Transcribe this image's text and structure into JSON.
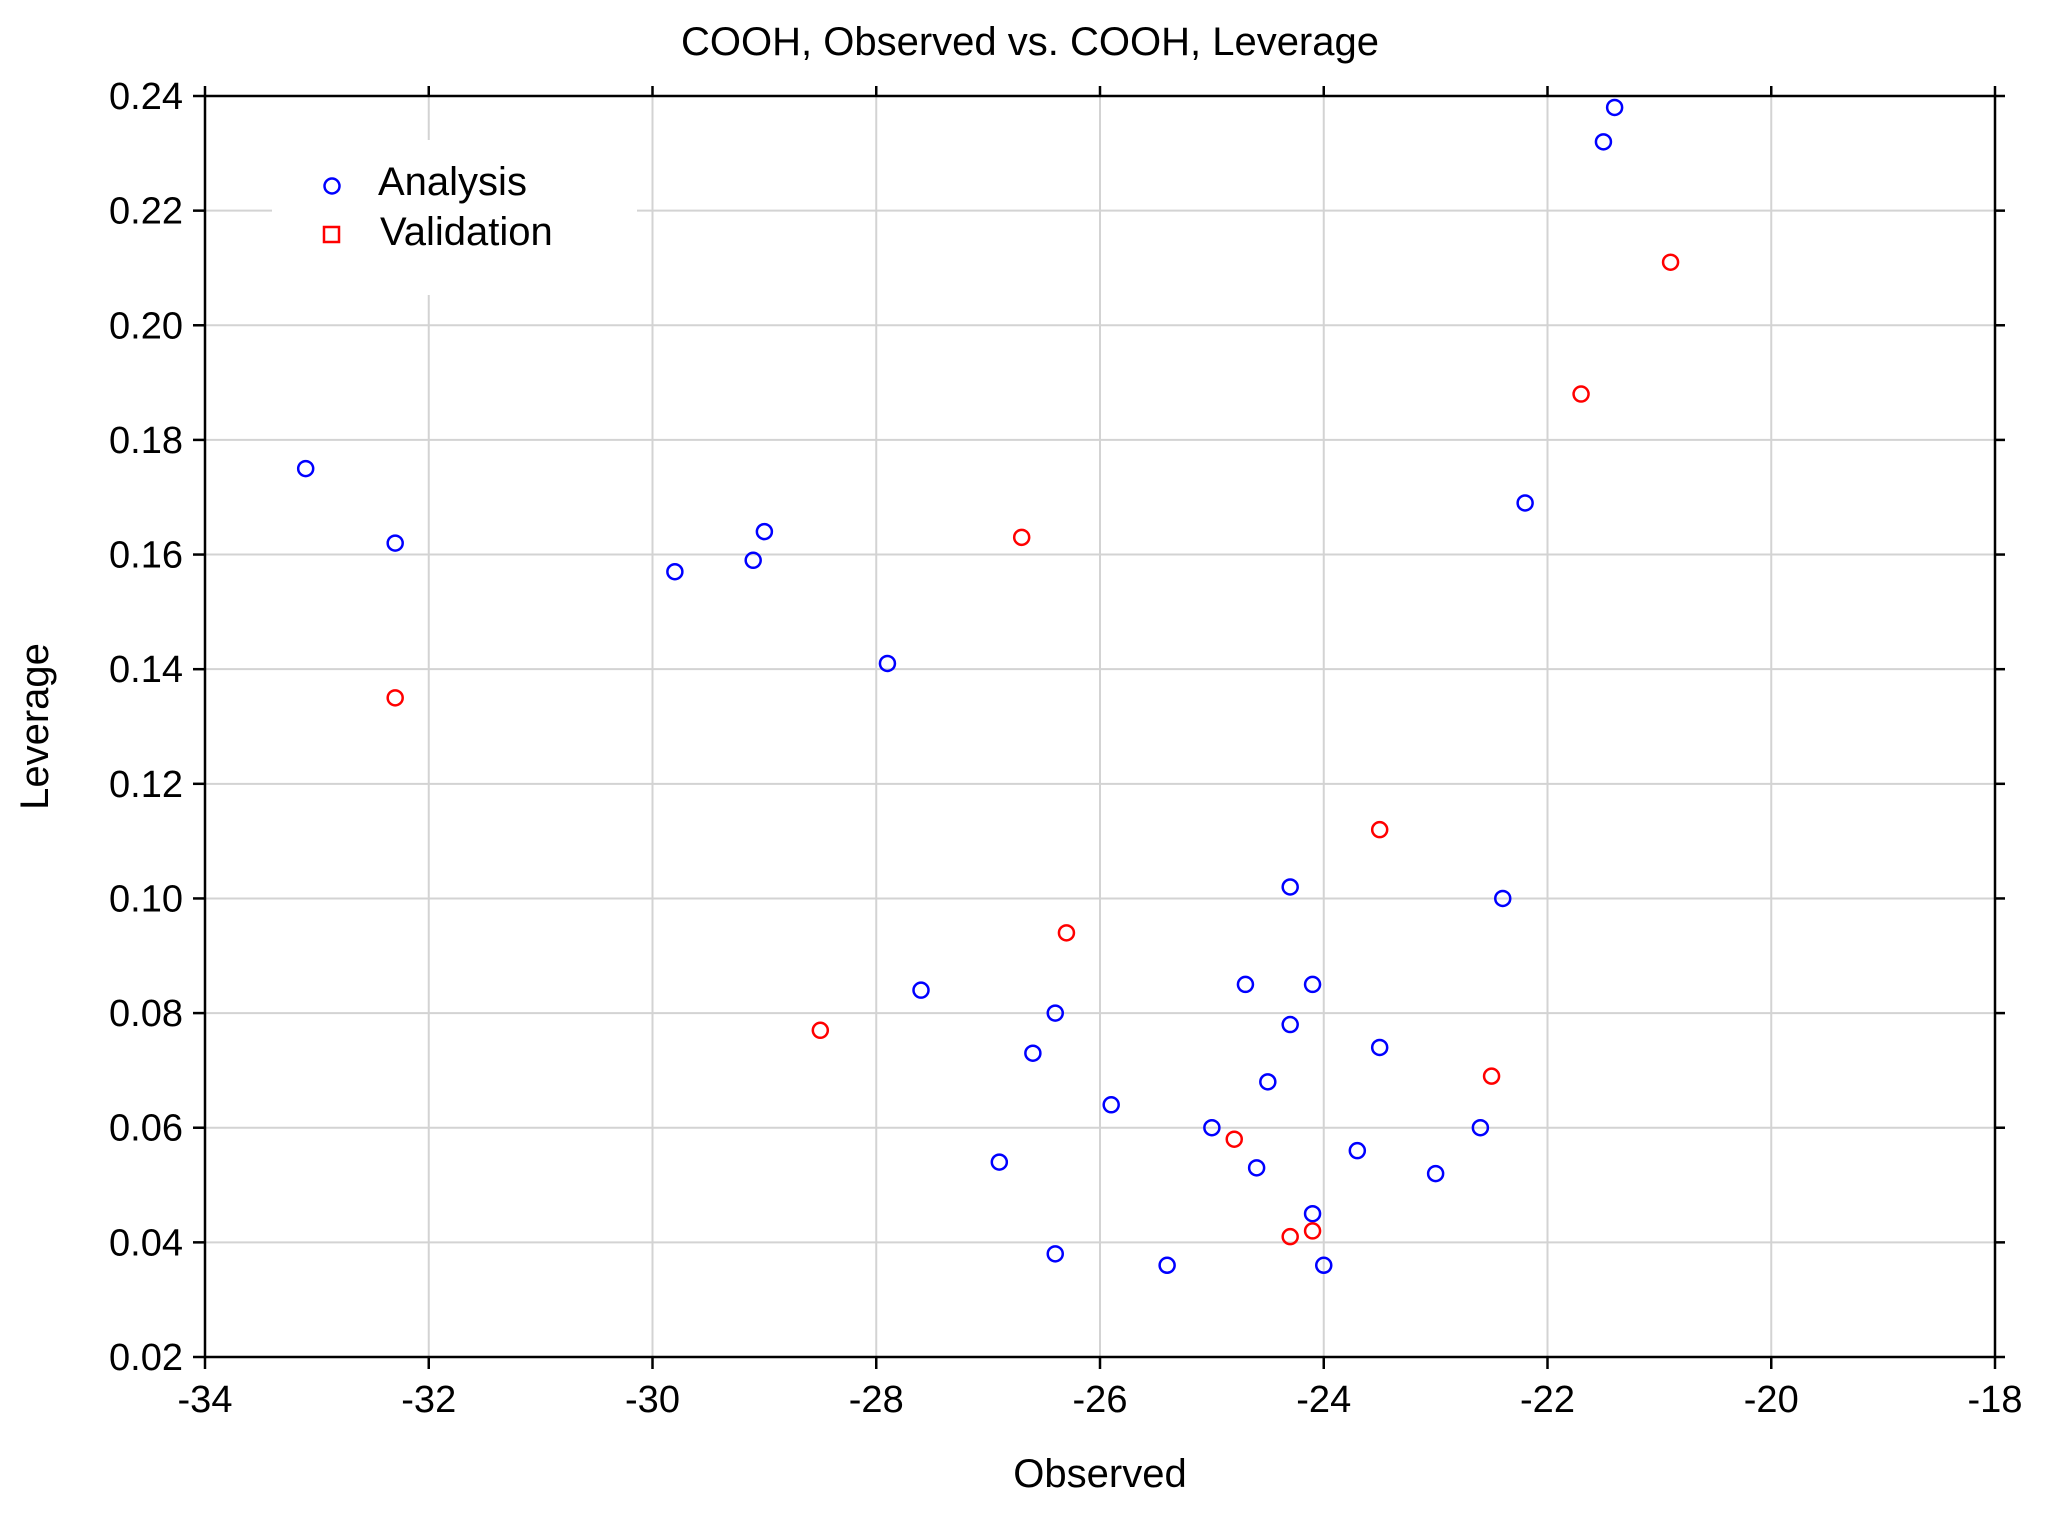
{
  "colors": {
    "analysis": "#0000ff",
    "validation": "#ff0000",
    "grid": "#d3d3d3",
    "axis": "#000000"
  },
  "chart_data": {
    "type": "scatter",
    "title": "COOH, Observed vs. COOH, Leverage",
    "xlabel": "Observed",
    "ylabel": "Leverage",
    "xlim": [
      -34,
      -18
    ],
    "ylim": [
      0.02,
      0.24
    ],
    "grid": true,
    "legend_position": "top-left",
    "x_ticks": [
      -34,
      -32,
      -30,
      -28,
      -26,
      -24,
      -22,
      -20,
      -18
    ],
    "x_tick_labels": [
      "-34",
      "-32",
      "-30",
      "-28",
      "-26",
      "-24",
      "-22",
      "-20",
      "-18"
    ],
    "y_ticks": [
      0.02,
      0.04,
      0.06,
      0.08,
      0.1,
      0.12,
      0.14,
      0.16,
      0.18,
      0.2,
      0.22,
      0.24
    ],
    "y_tick_labels": [
      "0.02",
      "0.04",
      "0.06",
      "0.08",
      "0.10",
      "0.12",
      "0.14",
      "0.16",
      "0.18",
      "0.20",
      "0.22",
      "0.24"
    ],
    "series": [
      {
        "name": "Analysis",
        "marker": "circle",
        "points": [
          [
            -33.1,
            0.175
          ],
          [
            -32.3,
            0.162
          ],
          [
            -29.8,
            0.157
          ],
          [
            -29.1,
            0.159
          ],
          [
            -29.0,
            0.164
          ],
          [
            -27.9,
            0.141
          ],
          [
            -27.6,
            0.084
          ],
          [
            -26.9,
            0.054
          ],
          [
            -26.6,
            0.073
          ],
          [
            -26.4,
            0.08
          ],
          [
            -26.4,
            0.038
          ],
          [
            -25.9,
            0.064
          ],
          [
            -25.4,
            0.036
          ],
          [
            -25.0,
            0.06
          ],
          [
            -24.7,
            0.085
          ],
          [
            -24.6,
            0.053
          ],
          [
            -24.5,
            0.068
          ],
          [
            -24.3,
            0.102
          ],
          [
            -24.3,
            0.078
          ],
          [
            -24.1,
            0.085
          ],
          [
            -24.1,
            0.045
          ],
          [
            -24.0,
            0.036
          ],
          [
            -23.7,
            0.056
          ],
          [
            -23.5,
            0.074
          ],
          [
            -23.0,
            0.052
          ],
          [
            -22.6,
            0.06
          ],
          [
            -22.4,
            0.1
          ],
          [
            -22.2,
            0.169
          ],
          [
            -21.5,
            0.232
          ],
          [
            -21.4,
            0.238
          ]
        ]
      },
      {
        "name": "Validation",
        "marker": "square",
        "points": [
          [
            -32.3,
            0.135
          ],
          [
            -28.5,
            0.077
          ],
          [
            -26.7,
            0.163
          ],
          [
            -26.3,
            0.094
          ],
          [
            -24.8,
            0.058
          ],
          [
            -24.3,
            0.041
          ],
          [
            -24.1,
            0.042
          ],
          [
            -23.5,
            0.112
          ],
          [
            -22.5,
            0.069
          ],
          [
            -21.7,
            0.188
          ],
          [
            -20.9,
            0.211
          ]
        ]
      }
    ]
  }
}
